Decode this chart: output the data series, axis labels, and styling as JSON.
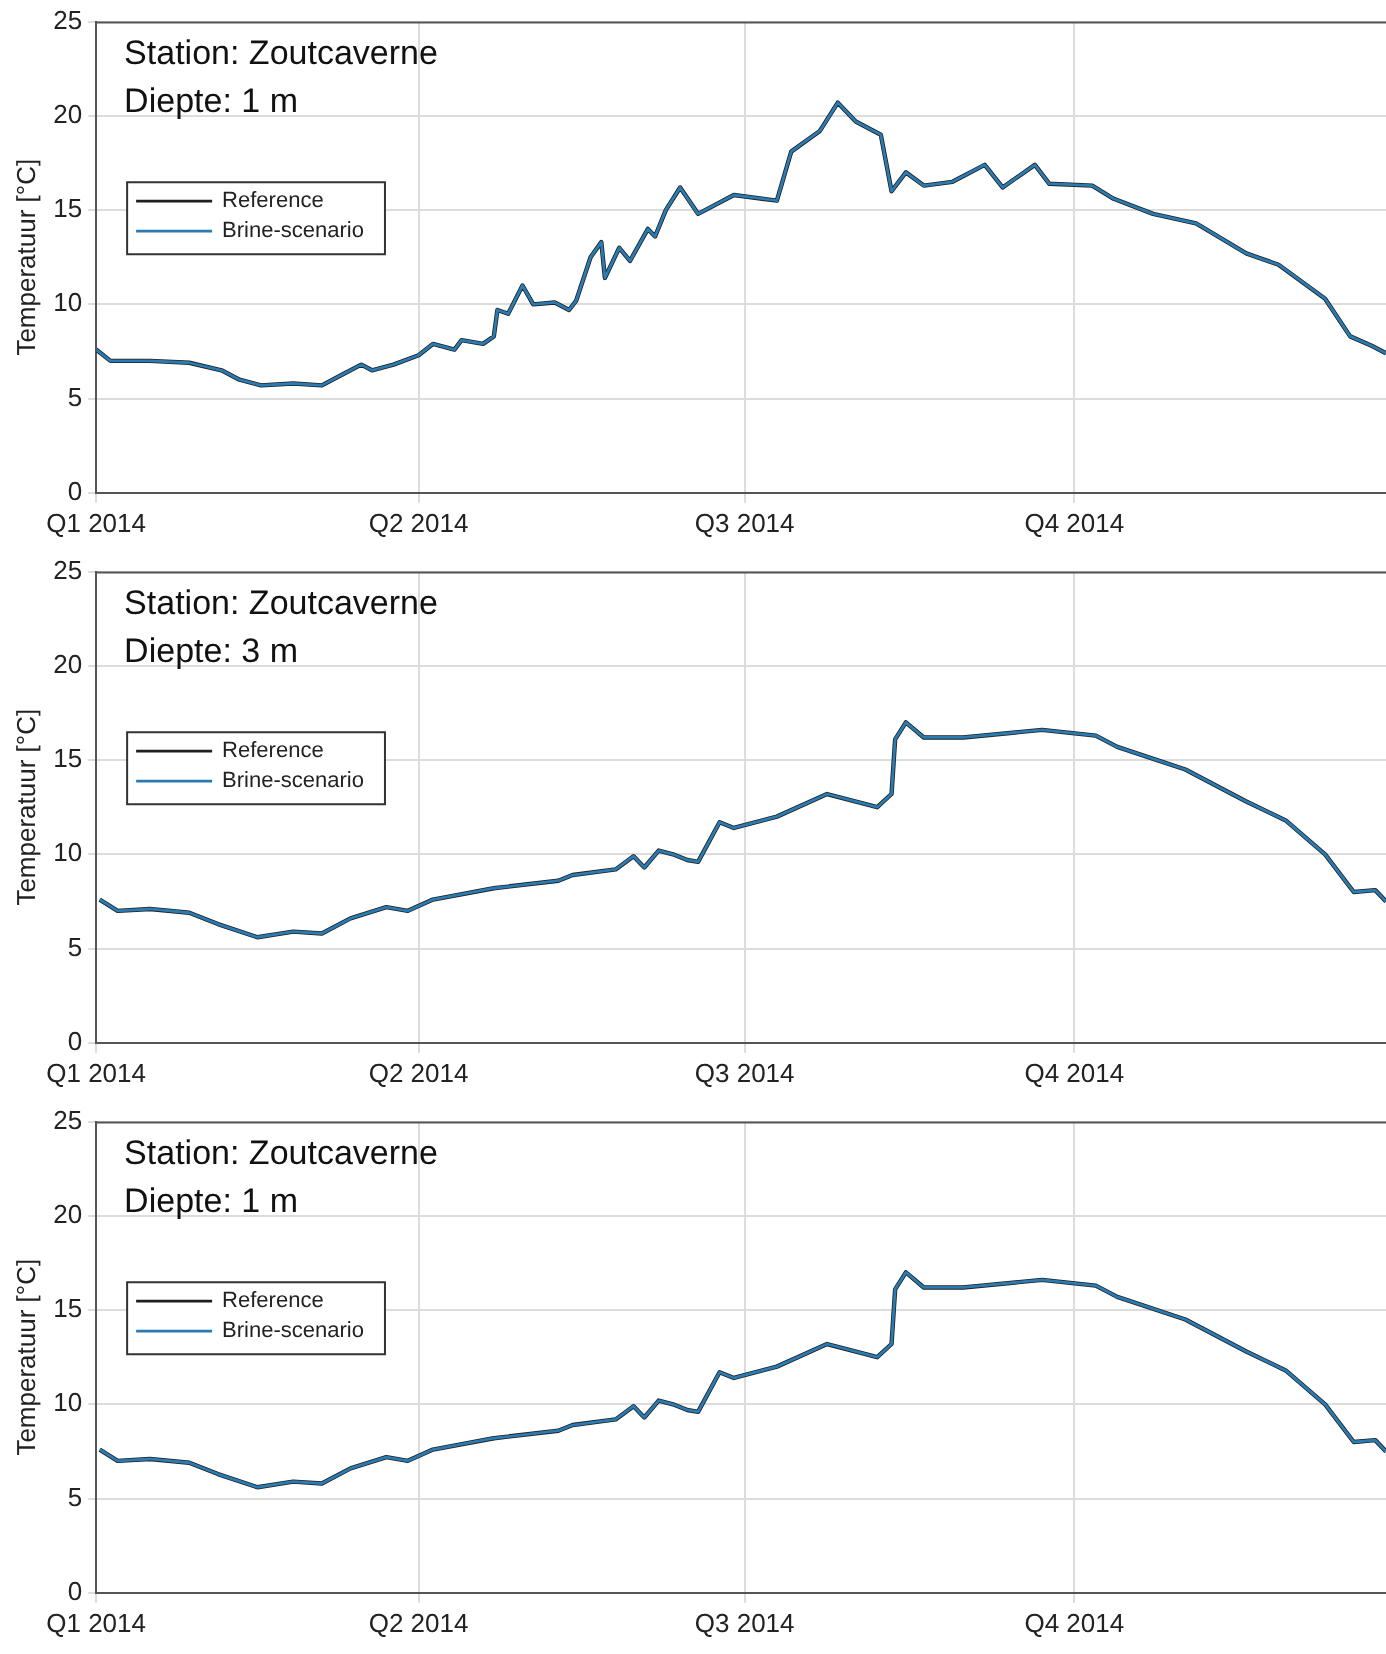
{
  "chart_data": [
    {
      "type": "line",
      "annotations": [
        "Station: Zoutcaverne",
        "Diepte: 1 m"
      ],
      "ylabel": "Temperatuur [°C]",
      "legend": "left",
      "grid": true,
      "x": [
        "2014-01-01",
        "2014-01-05",
        "2014-01-16",
        "2014-01-27",
        "2014-02-05",
        "2014-02-10",
        "2014-02-16",
        "2014-02-25",
        "2014-03-05",
        "2014-03-11",
        "2014-03-16",
        "2014-03-19",
        "2014-03-25",
        "2014-04-01",
        "2014-04-05",
        "2014-04-11",
        "2014-04-13",
        "2014-04-19",
        "2014-04-22",
        "2014-04-23",
        "2014-04-26",
        "2014-04-30",
        "2014-05-03",
        "2014-05-09",
        "2014-05-13",
        "2014-05-15",
        "2014-05-19",
        "2014-05-22",
        "2014-05-23",
        "2014-05-27",
        "2014-05-30",
        "2014-06-04",
        "2014-06-06",
        "2014-06-09",
        "2014-06-13",
        "2014-06-18",
        "2014-06-28",
        "2014-07-10",
        "2014-07-14",
        "2014-07-22",
        "2014-07-27",
        "2014-08-01",
        "2014-08-08",
        "2014-08-11",
        "2014-08-15",
        "2014-08-20",
        "2014-08-28",
        "2014-09-06",
        "2014-09-11",
        "2014-09-20",
        "2014-09-24",
        "2014-10-06",
        "2014-10-12",
        "2014-10-23",
        "2014-11-04",
        "2014-11-18",
        "2014-11-27",
        "2014-12-10",
        "2014-12-17",
        "2014-12-23",
        "2014-12-27"
      ],
      "series": [
        {
          "name": "Reference",
          "color": "#1f1f1f",
          "values": [
            7.6,
            7.0,
            7.0,
            6.9,
            6.5,
            6.0,
            5.7,
            5.8,
            5.7,
            6.3,
            6.8,
            6.5,
            6.8,
            7.3,
            7.9,
            7.6,
            8.1,
            7.9,
            8.3,
            9.7,
            9.5,
            11.0,
            10.0,
            10.1,
            9.7,
            10.2,
            12.5,
            13.3,
            11.4,
            13.0,
            12.3,
            14.0,
            13.6,
            15.0,
            16.2,
            14.8,
            15.8,
            15.5,
            18.1,
            19.2,
            20.7,
            19.7,
            19.0,
            16.0,
            17.0,
            16.3,
            16.5,
            17.4,
            16.2,
            17.4,
            16.4,
            16.3,
            15.6,
            14.8,
            14.3,
            12.7,
            12.1,
            10.3,
            8.3,
            7.8,
            7.4
          ]
        },
        {
          "name": "Brine-scenario",
          "color": "#2b7bb3",
          "values": [
            7.6,
            7.0,
            7.0,
            6.9,
            6.5,
            6.0,
            5.7,
            5.8,
            5.7,
            6.3,
            6.8,
            6.5,
            6.8,
            7.3,
            7.9,
            7.6,
            8.1,
            7.9,
            8.3,
            9.7,
            9.5,
            11.0,
            10.0,
            10.1,
            9.7,
            10.2,
            12.5,
            13.3,
            11.4,
            13.0,
            12.3,
            14.0,
            13.6,
            15.0,
            16.2,
            14.8,
            15.8,
            15.5,
            18.1,
            19.2,
            20.7,
            19.7,
            19.0,
            16.0,
            17.0,
            16.3,
            16.5,
            17.4,
            16.2,
            17.4,
            16.4,
            16.3,
            15.6,
            14.8,
            14.3,
            12.7,
            12.1,
            10.3,
            8.3,
            7.8,
            7.4
          ]
        }
      ],
      "xlim": [
        "2014-01-01",
        "2014-12-27"
      ],
      "xticks": [
        {
          "value": "2014-01-01",
          "label": "Q1 2014"
        },
        {
          "value": "2014-04-01",
          "label": "Q2 2014"
        },
        {
          "value": "2014-07-01",
          "label": "Q3 2014"
        },
        {
          "value": "2014-10-01",
          "label": "Q4 2014"
        }
      ],
      "ylim": [
        0,
        25
      ],
      "yticks": [
        0,
        5,
        10,
        15,
        20,
        25
      ]
    },
    {
      "type": "line",
      "annotations": [
        "Station: Zoutcaverne",
        "Diepte: 3 m"
      ],
      "ylabel": "Temperatuur [°C]",
      "legend": "left",
      "grid": true,
      "x": [
        "2014-01-02",
        "2014-01-07",
        "2014-01-16",
        "2014-01-27",
        "2014-02-04",
        "2014-02-15",
        "2014-02-25",
        "2014-03-05",
        "2014-03-13",
        "2014-03-23",
        "2014-03-29",
        "2014-04-05",
        "2014-04-22",
        "2014-05-10",
        "2014-05-14",
        "2014-05-26",
        "2014-05-31",
        "2014-06-03",
        "2014-06-07",
        "2014-06-11",
        "2014-06-15",
        "2014-06-18",
        "2014-06-24",
        "2014-06-28",
        "2014-07-10",
        "2014-07-24",
        "2014-08-07",
        "2014-08-11",
        "2014-08-12",
        "2014-08-15",
        "2014-08-20",
        "2014-08-31",
        "2014-09-22",
        "2014-10-07",
        "2014-10-13",
        "2014-11-01",
        "2014-11-18",
        "2014-11-29",
        "2014-12-10",
        "2014-12-18",
        "2014-12-24",
        "2014-12-27"
      ],
      "series": [
        {
          "name": "Reference",
          "color": "#1f1f1f",
          "values": [
            7.6,
            7.0,
            7.1,
            6.9,
            6.3,
            5.6,
            5.9,
            5.8,
            6.6,
            7.2,
            7.0,
            7.6,
            8.2,
            8.6,
            8.9,
            9.2,
            9.9,
            9.3,
            10.2,
            10.0,
            9.7,
            9.6,
            11.7,
            11.4,
            12.0,
            13.2,
            12.5,
            13.2,
            16.1,
            17.0,
            16.2,
            16.2,
            16.6,
            16.3,
            15.7,
            14.5,
            12.8,
            11.8,
            10.0,
            8.0,
            8.1,
            7.5
          ]
        },
        {
          "name": "Brine-scenario",
          "color": "#2b7bb3",
          "values": [
            7.6,
            7.0,
            7.1,
            6.9,
            6.3,
            5.6,
            5.9,
            5.8,
            6.6,
            7.2,
            7.0,
            7.6,
            8.2,
            8.6,
            8.9,
            9.2,
            9.9,
            9.3,
            10.2,
            10.0,
            9.7,
            9.6,
            11.7,
            11.4,
            12.0,
            13.2,
            12.5,
            13.2,
            16.1,
            17.0,
            16.2,
            16.2,
            16.6,
            16.3,
            15.7,
            14.5,
            12.8,
            11.8,
            10.0,
            8.0,
            8.1,
            7.5
          ]
        }
      ],
      "xlim": [
        "2014-01-01",
        "2014-12-27"
      ],
      "xticks": [
        {
          "value": "2014-01-01",
          "label": "Q1 2014"
        },
        {
          "value": "2014-04-01",
          "label": "Q2 2014"
        },
        {
          "value": "2014-07-01",
          "label": "Q3 2014"
        },
        {
          "value": "2014-10-01",
          "label": "Q4 2014"
        }
      ],
      "ylim": [
        0,
        25
      ],
      "yticks": [
        0,
        5,
        10,
        15,
        20,
        25
      ]
    },
    {
      "type": "line",
      "annotations": [
        "Station: Zoutcaverne",
        "Diepte: 1 m"
      ],
      "ylabel": "Temperatuur [°C]",
      "legend": "left",
      "grid": true,
      "x": [
        "2014-01-02",
        "2014-01-07",
        "2014-01-16",
        "2014-01-27",
        "2014-02-04",
        "2014-02-15",
        "2014-02-25",
        "2014-03-05",
        "2014-03-13",
        "2014-03-23",
        "2014-03-29",
        "2014-04-05",
        "2014-04-22",
        "2014-05-10",
        "2014-05-14",
        "2014-05-26",
        "2014-05-31",
        "2014-06-03",
        "2014-06-07",
        "2014-06-11",
        "2014-06-15",
        "2014-06-18",
        "2014-06-24",
        "2014-06-28",
        "2014-07-10",
        "2014-07-24",
        "2014-08-07",
        "2014-08-11",
        "2014-08-12",
        "2014-08-15",
        "2014-08-20",
        "2014-08-31",
        "2014-09-22",
        "2014-10-07",
        "2014-10-13",
        "2014-11-01",
        "2014-11-18",
        "2014-11-29",
        "2014-12-10",
        "2014-12-18",
        "2014-12-24",
        "2014-12-27"
      ],
      "series": [
        {
          "name": "Reference",
          "color": "#1f1f1f",
          "values": [
            7.6,
            7.0,
            7.1,
            6.9,
            6.3,
            5.6,
            5.9,
            5.8,
            6.6,
            7.2,
            7.0,
            7.6,
            8.2,
            8.6,
            8.9,
            9.2,
            9.9,
            9.3,
            10.2,
            10.0,
            9.7,
            9.6,
            11.7,
            11.4,
            12.0,
            13.2,
            12.5,
            13.2,
            16.1,
            17.0,
            16.2,
            16.2,
            16.6,
            16.3,
            15.7,
            14.5,
            12.8,
            11.8,
            10.0,
            8.0,
            8.1,
            7.5
          ]
        },
        {
          "name": "Brine-scenario",
          "color": "#2b7bb3",
          "values": [
            7.6,
            7.0,
            7.1,
            6.9,
            6.3,
            5.6,
            5.9,
            5.8,
            6.6,
            7.2,
            7.0,
            7.6,
            8.2,
            8.6,
            8.9,
            9.2,
            9.9,
            9.3,
            10.2,
            10.0,
            9.7,
            9.6,
            11.7,
            11.4,
            12.0,
            13.2,
            12.5,
            13.2,
            16.1,
            17.0,
            16.2,
            16.2,
            16.6,
            16.3,
            15.7,
            14.5,
            12.8,
            11.8,
            10.0,
            8.0,
            8.1,
            7.5
          ]
        }
      ],
      "xlim": [
        "2014-01-01",
        "2014-12-27"
      ],
      "xticks": [
        {
          "value": "2014-01-01",
          "label": "Q1 2014"
        },
        {
          "value": "2014-04-01",
          "label": "Q2 2014"
        },
        {
          "value": "2014-07-01",
          "label": "Q3 2014"
        },
        {
          "value": "2014-10-01",
          "label": "Q4 2014"
        }
      ],
      "ylim": [
        0,
        25
      ],
      "yticks": [
        0,
        5,
        10,
        15,
        20,
        25
      ]
    }
  ]
}
